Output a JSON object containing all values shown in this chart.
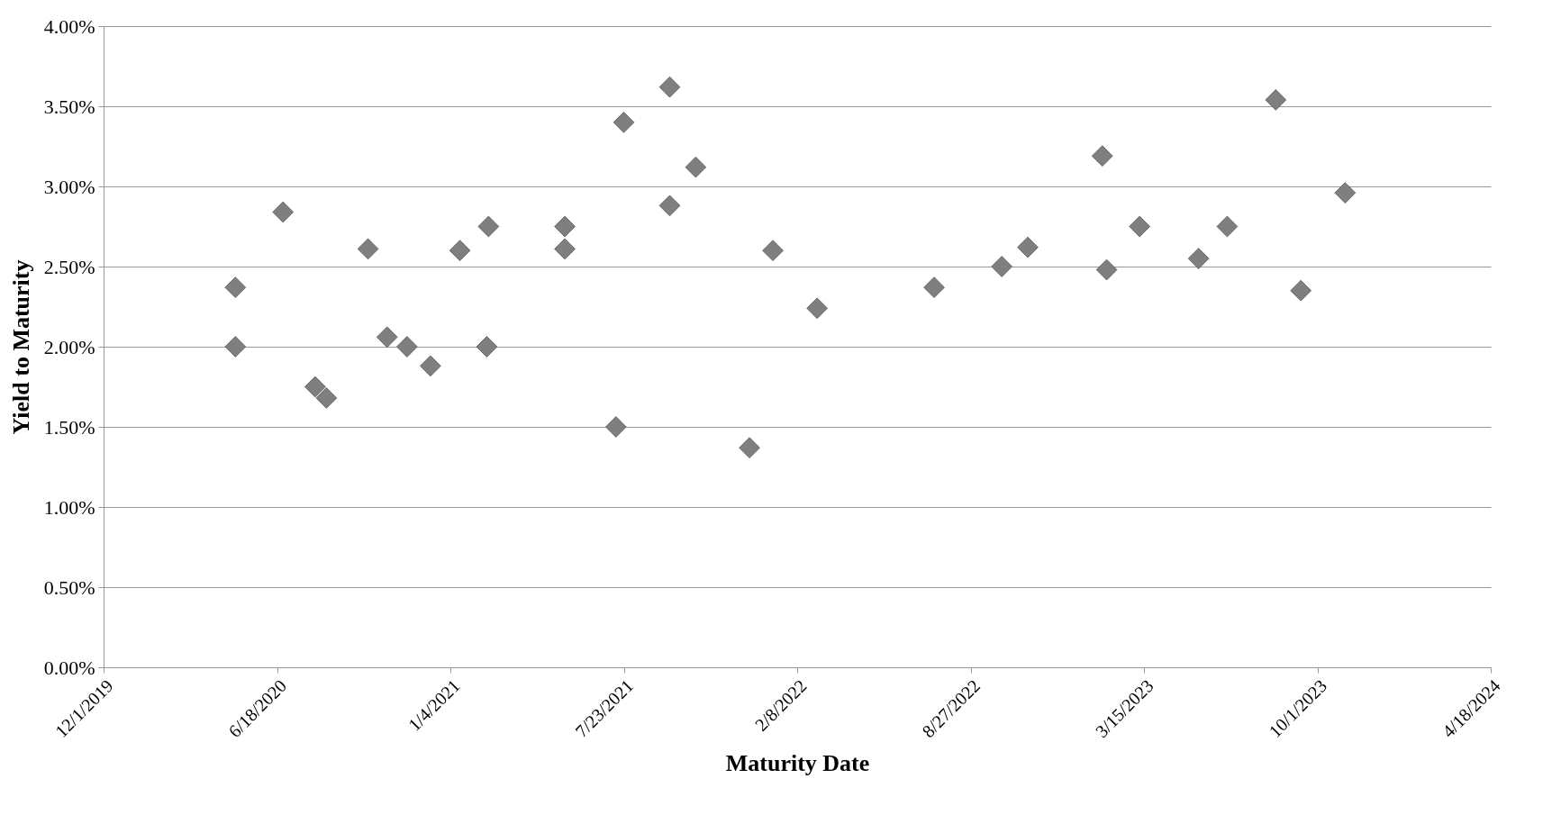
{
  "chart_data": {
    "type": "scatter",
    "xlabel": "Maturity Date",
    "ylabel": "Yield to Maturity",
    "x": [
      "2020-05-01",
      "2020-05-01",
      "2020-06-25",
      "2020-08-01",
      "2020-08-14",
      "2020-10-01",
      "2020-10-23",
      "2020-11-15",
      "2020-12-12",
      "2021-01-15",
      "2021-02-17",
      "2021-02-15",
      "2021-05-16",
      "2021-05-16",
      "2021-07-14",
      "2021-07-23",
      "2021-09-14",
      "2021-09-14",
      "2021-10-14",
      "2021-12-15",
      "2022-01-11",
      "2022-03-03",
      "2022-07-16",
      "2022-10-02",
      "2022-11-01",
      "2023-01-26",
      "2023-01-31",
      "2023-03-10",
      "2023-05-17",
      "2023-06-19",
      "2023-08-14",
      "2023-09-12",
      "2023-11-02"
    ],
    "series": [
      {
        "color": "#7f7f7f",
        "values": [
          2.37,
          2.0,
          2.84,
          1.75,
          1.68,
          2.61,
          2.06,
          2.0,
          1.88,
          2.6,
          2.75,
          2.0,
          2.75,
          2.61,
          1.5,
          3.4,
          3.62,
          2.88,
          3.12,
          1.37,
          2.6,
          2.24,
          2.37,
          2.5,
          2.62,
          3.19,
          2.48,
          2.75,
          2.55,
          2.75,
          3.54,
          2.35,
          2.96
        ]
      }
    ],
    "xlim": [
      "2019-12-01",
      "2024-04-18"
    ],
    "xticks": [
      {
        "value": "2019-12-01",
        "label": "12/1/2019"
      },
      {
        "value": "2020-06-18",
        "label": "6/18/2020"
      },
      {
        "value": "2021-01-04",
        "label": "1/4/2021"
      },
      {
        "value": "2021-07-23",
        "label": "7/23/2021"
      },
      {
        "value": "2022-02-08",
        "label": "2/8/2022"
      },
      {
        "value": "2022-08-27",
        "label": "8/27/2022"
      },
      {
        "value": "2023-03-15",
        "label": "3/15/2023"
      },
      {
        "value": "2023-10-01",
        "label": "10/1/2023"
      },
      {
        "value": "2024-04-18",
        "label": "4/18/2024"
      }
    ],
    "ylim": [
      0,
      4
    ],
    "yticks": [
      {
        "value": 0,
        "label": "0.00%"
      },
      {
        "value": 0.5,
        "label": "0.50%"
      },
      {
        "value": 1,
        "label": "1.00%"
      },
      {
        "value": 1.5,
        "label": "1.50%"
      },
      {
        "value": 2,
        "label": "2.00%"
      },
      {
        "value": 2.5,
        "label": "2.50%"
      },
      {
        "value": 3,
        "label": "3.00%"
      },
      {
        "value": 3.5,
        "label": "3.50%"
      },
      {
        "value": 4,
        "label": "4.00%"
      }
    ],
    "grid": "y",
    "marker": "diamond"
  }
}
